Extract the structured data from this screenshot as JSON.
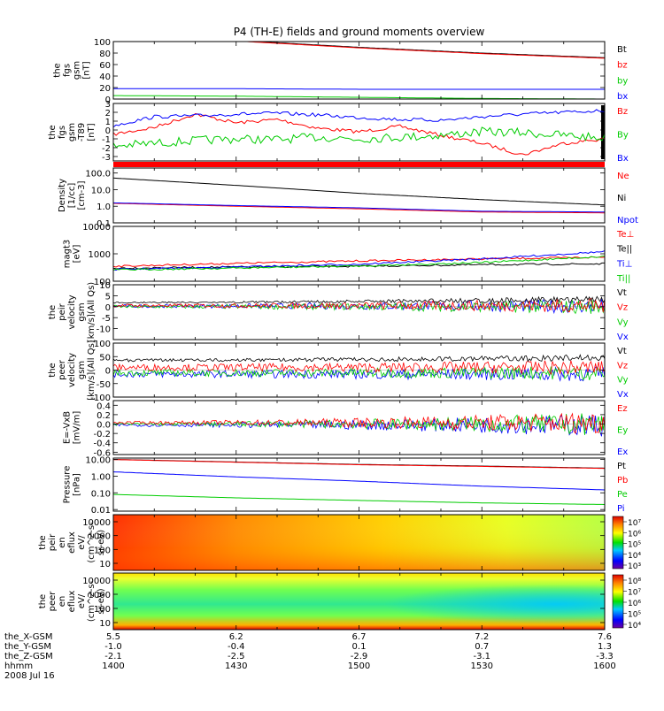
{
  "title": "P4 (TH-E) fields and ground moments overview",
  "date": "2008 Jul 16",
  "chart_data": [
    {
      "type": "line",
      "ylabel": [
        "the",
        "fgs",
        "gsm",
        "[nT]"
      ],
      "ylim": [
        0,
        100
      ],
      "yticks": [
        "100",
        "80",
        "60",
        "40",
        "20",
        "0"
      ],
      "legend": [
        {
          "name": "Bt",
          "color": "#000000"
        },
        {
          "name": "bz",
          "color": "#ff0000"
        },
        {
          "name": "by",
          "color": "#00cc00"
        },
        {
          "name": "bx",
          "color": "#0000ff"
        }
      ],
      "series": [
        {
          "name": "Bt",
          "color": "#000000",
          "x": [
            1400,
            1430,
            1500,
            1530,
            1600
          ],
          "values": [
            115,
            102,
            90,
            80,
            72
          ]
        },
        {
          "name": "bz",
          "color": "#ff0000",
          "x": [
            1400,
            1430,
            1500,
            1530,
            1600
          ],
          "values": [
            114,
            101,
            89,
            79,
            71
          ]
        },
        {
          "name": "by",
          "color": "#00cc00",
          "x": [
            1400,
            1430,
            1500,
            1530,
            1600
          ],
          "values": [
            6,
            5,
            3,
            1,
            0
          ]
        },
        {
          "name": "bx",
          "color": "#0000ff",
          "x": [
            1400,
            1430,
            1500,
            1530,
            1600
          ],
          "values": [
            18,
            18,
            17,
            17,
            17
          ]
        }
      ]
    },
    {
      "type": "line",
      "ylabel": [
        "the",
        "fgs",
        "gsm",
        "-T89",
        "[nT]"
      ],
      "ylim": [
        -3.5,
        3
      ],
      "yticks": [
        "3",
        "2",
        "1",
        "0",
        "-1",
        "-2",
        "-3"
      ],
      "legend": [
        {
          "name": "Bz",
          "color": "#ff0000"
        },
        {
          "name": "By",
          "color": "#00cc00"
        },
        {
          "name": "Bx",
          "color": "#0000ff"
        }
      ],
      "series": [
        {
          "name": "Bz",
          "color": "#ff0000",
          "x": [
            1400,
            1410,
            1420,
            1430,
            1440,
            1450,
            1500,
            1510,
            1520,
            1530,
            1540,
            1550,
            1600
          ],
          "values": [
            -0.5,
            0.3,
            1.8,
            0.8,
            1.2,
            0.2,
            -0.2,
            0.4,
            -0.6,
            -1.5,
            -2.8,
            -1.5,
            -1.0
          ]
        },
        {
          "name": "By",
          "color": "#00cc00",
          "x": [
            1400,
            1410,
            1420,
            1430,
            1440,
            1450,
            1500,
            1510,
            1520,
            1530,
            1540,
            1550,
            1600
          ],
          "values": [
            -1.8,
            -1.5,
            -1.2,
            -1.0,
            -1.1,
            -0.8,
            -1.0,
            -0.8,
            -0.6,
            -0.2,
            -0.3,
            -0.6,
            -0.9
          ]
        },
        {
          "name": "Bx",
          "color": "#0000ff",
          "x": [
            1400,
            1410,
            1420,
            1430,
            1440,
            1450,
            1500,
            1510,
            1520,
            1530,
            1540,
            1550,
            1600
          ],
          "values": [
            0.5,
            1.5,
            1.6,
            1.8,
            1.9,
            1.7,
            1.4,
            1.2,
            1.1,
            1.5,
            1.8,
            2.0,
            2.2
          ]
        }
      ]
    },
    {
      "type": "line",
      "log": true,
      "ylabel": [
        "Density",
        "[1/cc]",
        "[cm-3]"
      ],
      "ylim": [
        0.1,
        200
      ],
      "yticks": [
        "100.0",
        "10.0",
        "1.0",
        "0.1"
      ],
      "legend": [
        {
          "name": "Ne",
          "color": "#ff0000"
        },
        {
          "name": "Ni",
          "color": "#000000"
        },
        {
          "name": "Npot",
          "color": "#0000ff"
        }
      ],
      "series": [
        {
          "name": "Ni",
          "color": "#000000",
          "x": [
            1400,
            1430,
            1500,
            1530,
            1600
          ],
          "values": [
            50,
            18,
            6,
            2.5,
            1.2
          ]
        },
        {
          "name": "Ne",
          "color": "#ff0000",
          "x": [
            1400,
            1430,
            1500,
            1530,
            1600
          ],
          "values": [
            1.5,
            1.0,
            0.7,
            0.45,
            0.4
          ]
        },
        {
          "name": "Npot",
          "color": "#0000ff",
          "x": [
            1400,
            1430,
            1500,
            1530,
            1600
          ],
          "values": [
            1.6,
            1.1,
            0.8,
            0.5,
            0.45
          ]
        }
      ]
    },
    {
      "type": "line",
      "log": true,
      "ylabel": [
        "magt3",
        "[eV]"
      ],
      "ylim": [
        100,
        10000
      ],
      "yticks": [
        "10000",
        "1000",
        "100"
      ],
      "legend": [
        {
          "name": "Te⊥",
          "color": "#ff0000"
        },
        {
          "name": "Te||",
          "color": "#000000"
        },
        {
          "name": "Ti⊥",
          "color": "#0000ff"
        },
        {
          "name": "Ti||",
          "color": "#00cc00"
        }
      ],
      "series": [
        {
          "name": "Te⊥",
          "color": "#ff0000",
          "x": [
            1400,
            1430,
            1500,
            1530,
            1600
          ],
          "values": [
            350,
            450,
            550,
            650,
            750
          ]
        },
        {
          "name": "Te||",
          "color": "#000000",
          "x": [
            1400,
            1430,
            1500,
            1530,
            1600
          ],
          "values": [
            300,
            330,
            350,
            400,
            430
          ]
        },
        {
          "name": "Ti⊥",
          "color": "#0000ff",
          "x": [
            1400,
            1430,
            1500,
            1530,
            1600
          ],
          "values": [
            270,
            330,
            420,
            650,
            1200
          ]
        },
        {
          "name": "Ti||",
          "color": "#00cc00",
          "x": [
            1400,
            1430,
            1500,
            1530,
            1600
          ],
          "values": [
            260,
            300,
            360,
            480,
            800
          ]
        }
      ]
    },
    {
      "type": "line",
      "ylabel": [
        "the",
        "peir",
        "velocity",
        "gsm",
        "[km/s](All Qs)"
      ],
      "ylim": [
        -15,
        10
      ],
      "yticks": [
        "10",
        "5",
        "0",
        "-5",
        "-10"
      ],
      "legend": [
        {
          "name": "Vt",
          "color": "#000000"
        },
        {
          "name": "Vz",
          "color": "#ff0000"
        },
        {
          "name": "Vy",
          "color": "#00cc00"
        },
        {
          "name": "Vx",
          "color": "#0000ff"
        }
      ],
      "noise": {
        "start": 0.7,
        "end": 3.5,
        "centers": [
          1.5,
          0.5,
          0,
          0.3
        ],
        "bias": [
          0.9,
          0,
          0,
          0
        ]
      }
    },
    {
      "type": "line",
      "ylabel": [
        "the",
        "peer",
        "velocity",
        "gsm",
        "[km/s](All Qs)"
      ],
      "ylim": [
        -100,
        100
      ],
      "yticks": [
        "100",
        "50",
        "0",
        "-50",
        "-100"
      ],
      "legend": [
        {
          "name": "Vt",
          "color": "#000000"
        },
        {
          "name": "Vz",
          "color": "#ff0000"
        },
        {
          "name": "Vy",
          "color": "#00cc00"
        },
        {
          "name": "Vx",
          "color": "#0000ff"
        }
      ],
      "noise": {
        "start": 12,
        "end": 28,
        "centers": [
          30,
          10,
          -10,
          -15
        ],
        "bias": [
          0.9,
          0,
          0,
          0
        ]
      }
    },
    {
      "type": "line",
      "ylabel": [
        "E=-VxB",
        "[mV/m]"
      ],
      "ylim": [
        -0.65,
        0.5
      ],
      "yticks": [
        "0.4",
        "0.2",
        "0.0",
        "-0.2",
        "-0.4",
        "-0.6"
      ],
      "legend": [
        {
          "name": "Ez",
          "color": "#ff0000"
        },
        {
          "name": "Ey",
          "color": "#00cc00"
        },
        {
          "name": "Ex",
          "color": "#0000ff"
        }
      ],
      "noise": {
        "start": 0.03,
        "end": 0.25,
        "centers": [
          0.03,
          0.0,
          -0.02
        ],
        "bias": [
          0,
          0,
          0
        ]
      }
    },
    {
      "type": "line",
      "log": true,
      "ylabel": [
        "Pressure",
        "[nPa]"
      ],
      "ylim": [
        0.008,
        12
      ],
      "yticks": [
        "10.00",
        "1.00",
        "0.10",
        "0.01"
      ],
      "legend": [
        {
          "name": "Pt",
          "color": "#000000"
        },
        {
          "name": "Pb",
          "color": "#ff0000"
        },
        {
          "name": "Pe",
          "color": "#00cc00"
        },
        {
          "name": "Pi",
          "color": "#0000ff"
        }
      ],
      "series": [
        {
          "name": "Pt",
          "color": "#000000",
          "x": [
            1400,
            1430,
            1500,
            1530,
            1600
          ],
          "values": [
            10,
            7,
            5,
            4,
            3
          ]
        },
        {
          "name": "Pb",
          "color": "#ff0000",
          "x": [
            1400,
            1430,
            1500,
            1530,
            1600
          ],
          "values": [
            9.8,
            6.8,
            4.8,
            3.8,
            2.9
          ]
        },
        {
          "name": "Pe",
          "color": "#00cc00",
          "x": [
            1400,
            1430,
            1500,
            1530,
            1600
          ],
          "values": [
            0.08,
            0.05,
            0.035,
            0.025,
            0.02
          ]
        },
        {
          "name": "Pi",
          "color": "#0000ff",
          "x": [
            1400,
            1430,
            1500,
            1530,
            1600
          ],
          "values": [
            1.8,
            0.9,
            0.5,
            0.25,
            0.15
          ]
        }
      ]
    },
    {
      "type": "heatmap",
      "ylabel": [
        "the",
        "peir",
        "en",
        "eflux",
        "eV/",
        "(cm^2-s-",
        "sr-eV)"
      ],
      "yticks": [
        "10000",
        "1000",
        "100",
        "10"
      ],
      "colorbar_ticks": [
        "10⁷",
        "10⁶",
        "10⁵",
        "10⁴",
        "10³"
      ]
    },
    {
      "type": "heatmap",
      "ylabel": [
        "the",
        "peer",
        "en",
        "eflux",
        "eV/",
        "(cm^2-s-",
        "sr-eV)"
      ],
      "yticks": [
        "10000",
        "1000",
        "100",
        "10"
      ],
      "colorbar_ticks": [
        "10⁸",
        "10⁷",
        "10⁶",
        "10⁵",
        "10⁴"
      ]
    }
  ],
  "xaxis": {
    "rows": [
      {
        "label": "the_X-GSM",
        "values": [
          "5.5",
          "6.2",
          "6.7",
          "7.2",
          "7.6"
        ]
      },
      {
        "label": "the_Y-GSM",
        "values": [
          "-1.0",
          "-0.4",
          "0.1",
          "0.7",
          "1.3"
        ]
      },
      {
        "label": "the_Z-GSM",
        "values": [
          "-2.1",
          "-2.5",
          "-2.9",
          "-3.1",
          "-3.3"
        ]
      },
      {
        "label": "hhmm",
        "values": [
          "1400",
          "1430",
          "1500",
          "1530",
          "1600"
        ]
      }
    ]
  }
}
